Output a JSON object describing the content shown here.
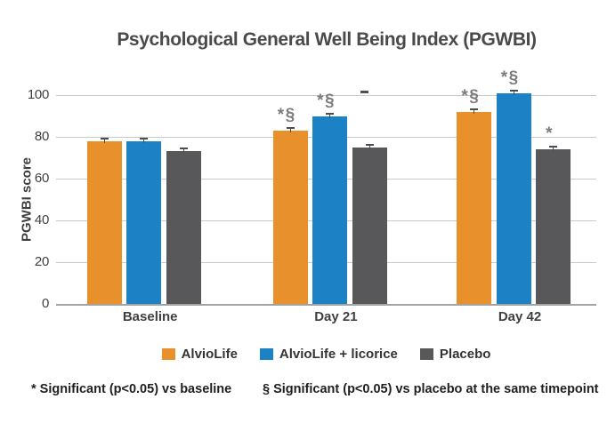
{
  "title": "Psychological General Well Being Index (PGWBI)",
  "footnotes": {
    "star": "* Significant (p<0.05) vs baseline",
    "section": "§ Significant (p<0.05) vs placebo at the same timepoint"
  },
  "colors": {
    "alviolife": "#E8912C",
    "alviolife_licorice": "#1C82C5",
    "placebo": "#58585A",
    "gridline": "#C9C9C9",
    "annotation": "#7B7B7B"
  },
  "chart_data": {
    "type": "bar",
    "title": "Psychological General Well Being Index (PGWBI)",
    "xlabel": "",
    "ylabel": "PGWBI score",
    "ylim": [
      0,
      100
    ],
    "y_ticks": [
      0,
      20,
      40,
      60,
      80,
      100
    ],
    "grid": true,
    "legend_position": "bottom",
    "error_bars": true,
    "categories": [
      "Baseline",
      "Day 21",
      "Day 42"
    ],
    "series": [
      {
        "name": "AlvioLife",
        "color": "#E8912C",
        "values": [
          78,
          83,
          92
        ],
        "annotations": [
          "",
          "*§",
          "*§"
        ]
      },
      {
        "name": "AlvioLife + licorice",
        "color": "#1C82C5",
        "values": [
          78,
          90,
          101
        ],
        "annotations": [
          "",
          "*§",
          "*§"
        ]
      },
      {
        "name": "Placebo",
        "color": "#58585A",
        "values": [
          73,
          75,
          74
        ],
        "annotations": [
          "",
          "",
          "*"
        ]
      }
    ]
  }
}
